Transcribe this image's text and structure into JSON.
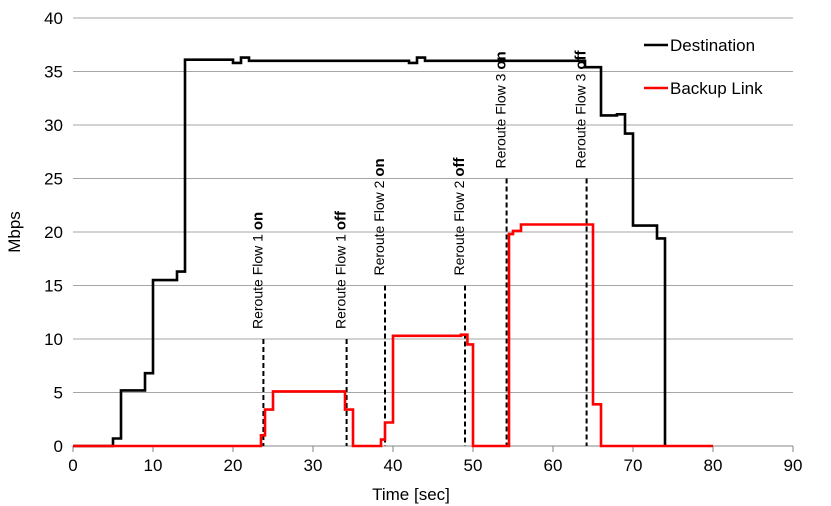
{
  "chart_data": {
    "type": "line",
    "title": "",
    "xlabel": "Time [sec]",
    "ylabel": "Mbps",
    "xlim": [
      0,
      90
    ],
    "ylim": [
      0,
      40
    ],
    "xticks": [
      0,
      10,
      20,
      30,
      40,
      50,
      60,
      70,
      80,
      90
    ],
    "yticks": [
      0,
      5,
      10,
      15,
      20,
      25,
      30,
      35,
      40
    ],
    "grid": "horizontal",
    "legend_position": "top-right",
    "step": true,
    "colors": {
      "Destination": "#000000",
      "Backup Link": "#ff0000"
    },
    "series": [
      {
        "name": "Destination",
        "x": [
          0,
          5,
          5,
          6,
          6,
          9,
          9,
          10,
          10,
          13,
          13,
          14,
          14,
          20,
          20,
          21,
          21,
          22,
          22,
          33,
          33,
          34,
          34,
          42,
          42,
          43,
          43,
          44,
          44,
          64,
          64,
          66,
          66,
          68,
          68,
          69,
          69,
          70,
          70,
          73,
          73,
          74,
          74
        ],
        "y": [
          0,
          0,
          0.7,
          0.7,
          5.2,
          5.2,
          6.8,
          6.8,
          15.5,
          15.5,
          16.3,
          16.3,
          36.1,
          36.1,
          35.8,
          35.8,
          36.3,
          36.3,
          36.0,
          36.0,
          36.0,
          36.0,
          36.0,
          36.0,
          35.8,
          35.8,
          36.3,
          36.3,
          36.0,
          36.0,
          35.4,
          35.4,
          30.9,
          30.9,
          31.0,
          31.0,
          29.2,
          29.2,
          20.6,
          20.6,
          19.4,
          19.4,
          0
        ]
      },
      {
        "name": "Backup Link",
        "x": [
          0,
          23.5,
          23.5,
          24,
          24,
          25,
          25,
          33.5,
          33.5,
          34,
          34,
          35,
          35,
          38.5,
          38.5,
          39,
          39,
          40,
          40,
          48.5,
          48.5,
          49.3,
          49.3,
          50,
          50,
          54.5,
          54.5,
          55,
          55,
          56,
          56,
          64.5,
          64.5,
          65,
          65,
          66,
          66,
          80
        ],
        "y": [
          0,
          0,
          1.0,
          1.0,
          3.4,
          3.4,
          5.1,
          5.1,
          5.1,
          5.1,
          3.4,
          3.4,
          0,
          0,
          0.6,
          0.6,
          2.2,
          2.2,
          10.3,
          10.3,
          10.4,
          10.4,
          9.5,
          9.5,
          0,
          0,
          19.8,
          19.8,
          20.1,
          20.1,
          20.7,
          20.7,
          20.7,
          20.7,
          3.9,
          3.9,
          0,
          0
        ]
      }
    ],
    "annotations": [
      {
        "prefix": "Reroute Flow 1 ",
        "state": "on",
        "x": 23.8,
        "y_top": 10
      },
      {
        "prefix": "Reroute Flow 1 ",
        "state": "off",
        "x": 34.2,
        "y_top": 10
      },
      {
        "prefix": "Reroute Flow 2 ",
        "state": "on",
        "x": 39.0,
        "y_top": 15
      },
      {
        "prefix": "Reroute Flow 2 ",
        "state": "off",
        "x": 49.0,
        "y_top": 15
      },
      {
        "prefix": "Reroute Flow 3 ",
        "state": "on",
        "x": 54.2,
        "y_top": 25
      },
      {
        "prefix": "Reroute Flow 3 ",
        "state": "off",
        "x": 64.2,
        "y_top": 25
      }
    ]
  }
}
